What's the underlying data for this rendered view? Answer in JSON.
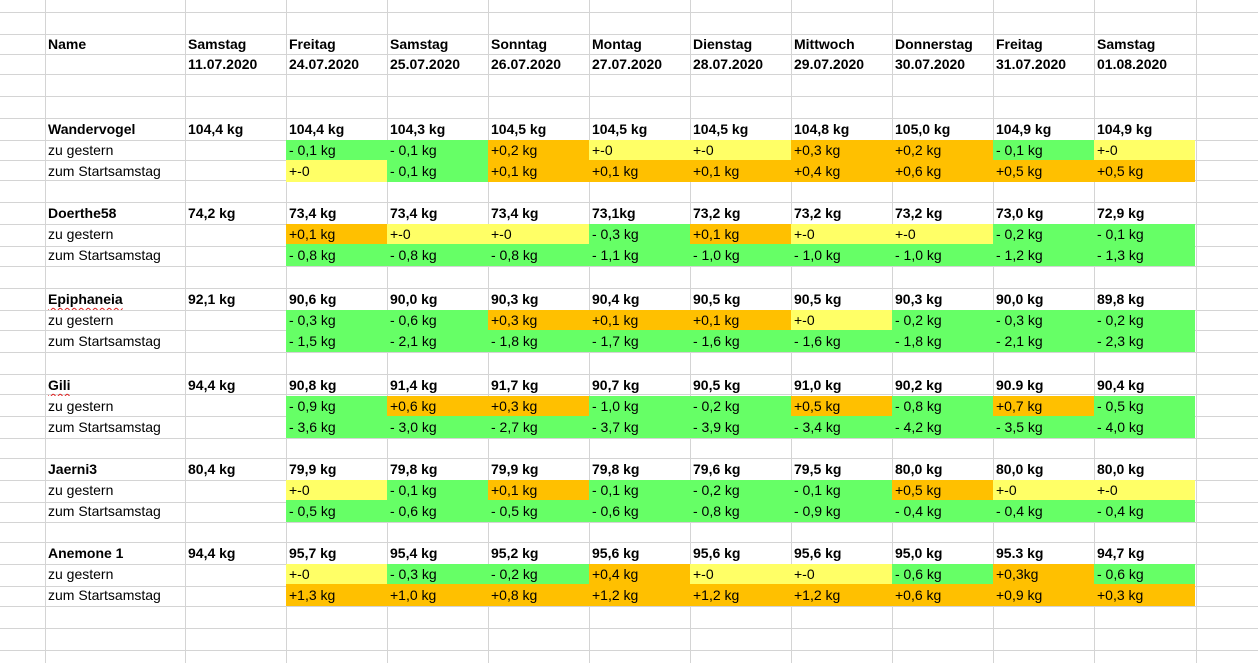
{
  "colors": {
    "green": "#66ff66",
    "yellow": "#ffff66",
    "orange": "#ffc000",
    "gridline": "#d4d4d4"
  },
  "header": {
    "name_label": "Name",
    "days": [
      {
        "day": "Samstag",
        "date": "11.07.2020"
      },
      {
        "day": "Freitag",
        "date": "24.07.2020"
      },
      {
        "day": "Samstag",
        "date": "25.07.2020"
      },
      {
        "day": "Sonntag",
        "date": "26.07.2020"
      },
      {
        "day": "Montag",
        "date": "27.07.2020"
      },
      {
        "day": "Dienstag",
        "date": "28.07.2020"
      },
      {
        "day": "Mittwoch",
        "date": "29.07.2020"
      },
      {
        "day": "Donnerstag",
        "date": "30.07.2020"
      },
      {
        "day": "Freitag",
        "date": "31.07.2020"
      },
      {
        "day": "Samstag",
        "date": "01.08.2020"
      }
    ]
  },
  "labels": {
    "yesterday": "zu gestern",
    "start": "zum Startsamstag"
  },
  "people": [
    {
      "name": "Wandervogel",
      "spell_mark": false,
      "weights": [
        "104,4 kg",
        "104,4 kg",
        "104,3 kg",
        "104,5 kg",
        "104,5 kg",
        "104,5 kg",
        "104,8 kg",
        "105,0 kg",
        "104,9 kg",
        "104,9 kg"
      ],
      "yesterday": [
        [
          "- 0,1 kg",
          "green"
        ],
        [
          "- 0,1 kg",
          "green"
        ],
        [
          "+0,2 kg",
          "orange"
        ],
        [
          "+-0",
          "yellow"
        ],
        [
          "+-0",
          "yellow"
        ],
        [
          "+0,3 kg",
          "orange"
        ],
        [
          "+0,2 kg",
          "orange"
        ],
        [
          "- 0,1 kg",
          "green"
        ],
        [
          "+-0",
          "yellow"
        ]
      ],
      "start": [
        [
          "+-0",
          "yellow"
        ],
        [
          "- 0,1 kg",
          "green"
        ],
        [
          "+0,1 kg",
          "orange"
        ],
        [
          "+0,1 kg",
          "orange"
        ],
        [
          "+0,1 kg",
          "orange"
        ],
        [
          "+0,4 kg",
          "orange"
        ],
        [
          "+0,6 kg",
          "orange"
        ],
        [
          "+0,5 kg",
          "orange"
        ],
        [
          "+0,5 kg",
          "orange"
        ]
      ]
    },
    {
      "name": "Doerthe58",
      "spell_mark": false,
      "weights": [
        "74,2 kg",
        "73,4 kg",
        "73,4 kg",
        " 73,4 kg",
        "73,1kg",
        "73,2 kg",
        "73,2 kg",
        "73,2 kg",
        "73,0 kg",
        "72,9 kg"
      ],
      "yesterday": [
        [
          "+0,1 kg",
          "orange"
        ],
        [
          "+-0",
          "yellow"
        ],
        [
          "+-0",
          "yellow"
        ],
        [
          "- 0,3  kg",
          "green"
        ],
        [
          "+0,1 kg",
          "orange"
        ],
        [
          "+-0",
          "yellow"
        ],
        [
          "+-0",
          "yellow"
        ],
        [
          "- 0,2 kg",
          "green"
        ],
        [
          "- 0,1 kg",
          "green"
        ]
      ],
      "start": [
        [
          "- 0,8 kg",
          "green"
        ],
        [
          "- 0,8 kg",
          "green"
        ],
        [
          "- 0,8 kg",
          "green"
        ],
        [
          "- 1,1  kg",
          "green"
        ],
        [
          "- 1,0 kg",
          "green"
        ],
        [
          "- 1,0 kg",
          "green"
        ],
        [
          "- 1,0 kg",
          "green"
        ],
        [
          "- 1,2 kg",
          "green"
        ],
        [
          "- 1,3 kg",
          "green"
        ]
      ]
    },
    {
      "name": "Epiphaneia",
      "spell_mark": true,
      "weights": [
        "92,1 kg",
        "90,6 kg",
        "90,0 kg",
        " 90,3 kg",
        "90,4 kg",
        "90,5 kg",
        "90,5 kg",
        "90,3 kg",
        "90,0 kg",
        "89,8 kg"
      ],
      "yesterday": [
        [
          "- 0,3 kg",
          "green"
        ],
        [
          "- 0,6 kg",
          "green"
        ],
        [
          "+0,3 kg",
          "orange"
        ],
        [
          "+0,1 kg",
          "orange"
        ],
        [
          "+0,1 kg",
          "orange"
        ],
        [
          "+-0",
          "yellow"
        ],
        [
          "- 0,2 kg",
          "green"
        ],
        [
          "- 0,3 kg",
          "green"
        ],
        [
          "- 0,2 kg",
          "green"
        ]
      ],
      "start": [
        [
          "- 1,5 kg",
          "green"
        ],
        [
          "- 2,1 kg",
          "green"
        ],
        [
          "- 1,8 kg",
          "green"
        ],
        [
          "- 1,7 kg",
          "green"
        ],
        [
          "- 1,6 kg",
          "green"
        ],
        [
          "- 1,6 kg",
          "green"
        ],
        [
          "- 1,8 kg",
          "green"
        ],
        [
          "- 2,1 kg",
          "green"
        ],
        [
          "- 2,3 kg",
          "green"
        ]
      ]
    },
    {
      "name": "Gili",
      "spell_mark": true,
      "weights": [
        "94,4 kg",
        "90,8 kg",
        "91,4 kg",
        " 91,7 kg",
        "90,7 kg",
        "90,5 kg",
        "91,0 kg",
        "90,2 kg",
        "90.9 kg",
        "90,4 kg"
      ],
      "yesterday": [
        [
          "- 0,9 kg",
          "green"
        ],
        [
          "+0,6 kg",
          "orange"
        ],
        [
          "+0,3 kg",
          "orange"
        ],
        [
          "- 1,0 kg",
          "green"
        ],
        [
          "- 0,2 kg",
          "green"
        ],
        [
          "+0,5 kg",
          "orange"
        ],
        [
          "- 0,8 kg",
          "green"
        ],
        [
          "+0,7 kg",
          "orange"
        ],
        [
          "- 0,5 kg",
          "green"
        ]
      ],
      "start": [
        [
          "- 3,6 kg",
          "green"
        ],
        [
          "- 3,0 kg",
          "green"
        ],
        [
          "- 2,7 kg",
          "green"
        ],
        [
          "- 3,7 kg",
          "green"
        ],
        [
          "- 3,9 kg",
          "green"
        ],
        [
          "- 3,4 kg",
          "green"
        ],
        [
          "- 4,2 kg",
          "green"
        ],
        [
          "- 3,5 kg",
          "green"
        ],
        [
          "- 4,0 kg",
          "green"
        ]
      ]
    },
    {
      "name": "Jaerni3",
      "spell_mark": false,
      "weights": [
        "80,4 kg",
        "79,9 kg",
        "79,8 kg",
        " 79,9 kg",
        "79,8 kg",
        "79,6 kg",
        "79,5 kg",
        "80,0 kg",
        "80,0 kg",
        "80,0 kg"
      ],
      "yesterday": [
        [
          "+-0",
          "yellow"
        ],
        [
          "- 0,1 kg",
          "green"
        ],
        [
          "+0,1 kg",
          "orange"
        ],
        [
          "- 0,1 kg",
          "green"
        ],
        [
          "- 0,2 kg",
          "green"
        ],
        [
          "- 0,1 kg",
          "green"
        ],
        [
          "+0,5 kg",
          "orange"
        ],
        [
          "+-0",
          "yellow"
        ],
        [
          "+-0",
          "yellow"
        ]
      ],
      "start": [
        [
          "- 0,5 kg",
          "green"
        ],
        [
          "- 0,6 kg",
          "green"
        ],
        [
          "- 0,5 kg",
          "green"
        ],
        [
          "- 0,6 kg",
          "green"
        ],
        [
          "- 0,8 kg",
          "green"
        ],
        [
          "- 0,9 kg",
          "green"
        ],
        [
          "- 0,4 kg",
          "green"
        ],
        [
          "- 0,4 kg",
          "green"
        ],
        [
          "- 0,4 kg",
          "green"
        ]
      ]
    },
    {
      "name": "Anemone 1",
      "spell_mark": false,
      "weights": [
        "94,4 kg",
        "95,7 kg",
        "95,4 kg",
        " 95,2 kg",
        "95,6 kg",
        "95,6 kg",
        "95,6 kg",
        "95,0 kg",
        "95.3 kg",
        "94,7 kg"
      ],
      "yesterday": [
        [
          "+-0",
          "yellow"
        ],
        [
          "- 0,3 kg",
          "green"
        ],
        [
          "- 0,2 kg",
          "green"
        ],
        [
          "+0,4 kg",
          "orange"
        ],
        [
          "+-0",
          "yellow"
        ],
        [
          "+-0",
          "yellow"
        ],
        [
          "- 0,6 kg",
          "green"
        ],
        [
          "+0,3kg",
          "orange"
        ],
        [
          "- 0,6 kg",
          "green"
        ]
      ],
      "start": [
        [
          "+1,3 kg",
          "orange"
        ],
        [
          "+1,0 kg",
          "orange"
        ],
        [
          "+0,8 kg",
          "orange"
        ],
        [
          "+1,2 kg",
          "orange"
        ],
        [
          "+1,2 kg",
          "orange"
        ],
        [
          "+1,2 kg",
          "orange"
        ],
        [
          "+0,6 kg",
          "orange"
        ],
        [
          "+0,9 kg",
          "orange"
        ],
        [
          "+0,3 kg",
          "orange"
        ]
      ]
    }
  ]
}
